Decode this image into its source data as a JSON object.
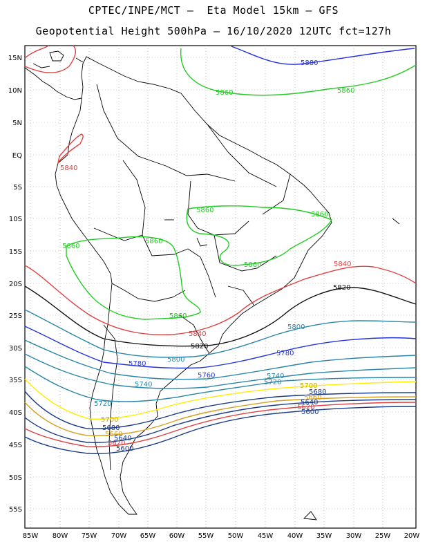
{
  "title": {
    "line1": "CPTEC/INPE/MCT –  Eta Model 15km – GFS",
    "line2": "Geopotential Height 500hPa – 16/10/2020 12UTC fct=127h"
  },
  "axes": {
    "lon_labels": [
      "85W",
      "80W",
      "75W",
      "70W",
      "65W",
      "60W",
      "55W",
      "50W",
      "45W",
      "40W",
      "35W",
      "30W",
      "25W",
      "20W"
    ],
    "lat_labels": [
      "15N",
      "10N",
      "5N",
      "EQ",
      "5S",
      "10S",
      "15S",
      "20S",
      "25S",
      "30S",
      "35S",
      "40S",
      "45S",
      "50S",
      "55S"
    ]
  },
  "contour_labels": [
    {
      "id": "c5880",
      "text": "5880",
      "color": "#2233dd"
    },
    {
      "id": "c5860a",
      "text": "5860",
      "color": "#22cc22"
    },
    {
      "id": "c5860b",
      "text": "5860",
      "color": "#22cc22"
    },
    {
      "id": "c5840eq",
      "text": "5840",
      "color": "#e04040"
    },
    {
      "id": "c5860c",
      "text": "5860",
      "color": "#22cc22"
    },
    {
      "id": "c5860d",
      "text": "5860",
      "color": "#22cc22"
    },
    {
      "id": "c5860e",
      "text": "5860",
      "color": "#22cc22"
    },
    {
      "id": "c5860f",
      "text": "5860",
      "color": "#22cc22"
    },
    {
      "id": "c5860g",
      "text": "5860",
      "color": "#22cc22"
    },
    {
      "id": "c5860h",
      "text": "5860",
      "color": "#22cc22"
    },
    {
      "id": "c5840a",
      "text": "5840",
      "color": "#e04040"
    },
    {
      "id": "c5820a",
      "text": "5820",
      "color": "#000000"
    },
    {
      "id": "c5840b",
      "text": "5840",
      "color": "#e04040"
    },
    {
      "id": "c5800a",
      "text": "5800",
      "color": "#2a86a6"
    },
    {
      "id": "c5820b",
      "text": "5820",
      "color": "#000000"
    },
    {
      "id": "c5780a",
      "text": "5780",
      "color": "#2233dd"
    },
    {
      "id": "c5780b",
      "text": "5780",
      "color": "#2233dd"
    },
    {
      "id": "c5800b",
      "text": "5800",
      "color": "#2a86a6"
    },
    {
      "id": "c5760",
      "text": "5760",
      "color": "#2233dd"
    },
    {
      "id": "c5740a",
      "text": "5740",
      "color": "#2a86a6"
    },
    {
      "id": "c5720a",
      "text": "5720",
      "color": "#2a86a6"
    },
    {
      "id": "c5740b",
      "text": "5740",
      "color": "#2a86a6"
    },
    {
      "id": "c5720b",
      "text": "5720",
      "color": "#2a86a6"
    },
    {
      "id": "c5700a",
      "text": "5700",
      "color": "#e0c000"
    },
    {
      "id": "c5680a",
      "text": "5680",
      "color": "#1a3a8a"
    },
    {
      "id": "c5660a",
      "text": "5660",
      "color": "#d4a020"
    },
    {
      "id": "c5640a",
      "text": "5640",
      "color": "#1a3a8a"
    },
    {
      "id": "c5620a",
      "text": "5620",
      "color": "#e04040"
    },
    {
      "id": "c5600a",
      "text": "5600",
      "color": "#1a3a8a"
    },
    {
      "id": "c5700b",
      "text": "5700",
      "color": "#e0c000"
    },
    {
      "id": "c5680b",
      "text": "5680",
      "color": "#1a3a8a"
    },
    {
      "id": "c5660b",
      "text": "5660",
      "color": "#d4a020"
    },
    {
      "id": "c5640b",
      "text": "5640",
      "color": "#1a3a8a"
    },
    {
      "id": "c5620b",
      "text": "5620",
      "color": "#e04040"
    },
    {
      "id": "c5600b",
      "text": "5600",
      "color": "#1a3a8a"
    }
  ]
}
